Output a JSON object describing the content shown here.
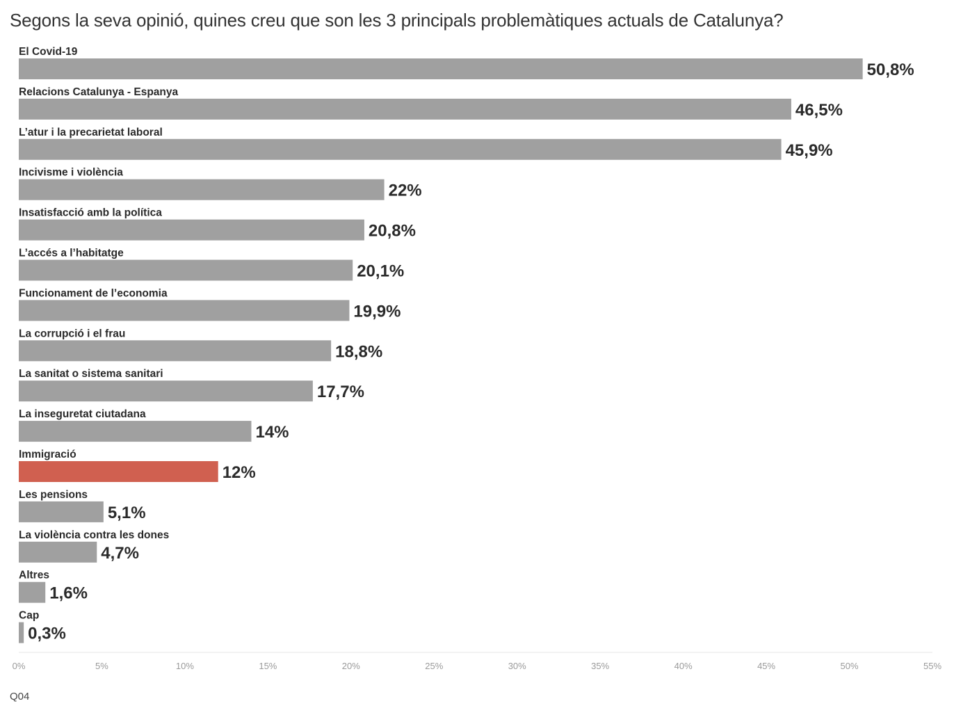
{
  "title": "Segons la seva opinió, quines creu que son les 3 principals problemàtiques actuals de Catalunya?",
  "footer": "Q04",
  "chart_data": {
    "type": "bar",
    "orientation": "horizontal",
    "categories": [
      "El Covid-19",
      "Relacions Catalunya - Espanya",
      "L’atur i la precarietat laboral",
      "Incivisme i violència",
      "Insatisfacció amb la política",
      "L’accés a l’habitatge",
      "Funcionament de l’economia",
      "La corrupció i el frau",
      "La sanitat o sistema sanitari",
      "La inseguretat ciutadana",
      "Immigració",
      "Les pensions",
      "La violència contra les dones",
      "Altres",
      "Cap"
    ],
    "values": [
      50.8,
      46.5,
      45.9,
      22,
      20.8,
      20.1,
      19.9,
      18.8,
      17.7,
      14,
      12,
      5.1,
      4.7,
      1.6,
      0.3
    ],
    "value_labels": [
      "50,8%",
      "46,5%",
      "45,9%",
      "22%",
      "20,8%",
      "20,1%",
      "19,9%",
      "18,8%",
      "17,7%",
      "14%",
      "12%",
      "5,1%",
      "4,7%",
      "1,6%",
      "0,3%"
    ],
    "highlight_category": "Immigració",
    "bar_color": "#a0a0a0",
    "highlight_color": "#d06050",
    "xlim": [
      0,
      55
    ],
    "x_ticks": [
      0,
      5,
      10,
      15,
      20,
      25,
      30,
      35,
      40,
      45,
      50,
      55
    ],
    "x_tick_labels": [
      "0%",
      "5%",
      "10%",
      "15%",
      "20%",
      "25%",
      "30%",
      "35%",
      "40%",
      "45%",
      "50%",
      "55%"
    ],
    "grid": false
  }
}
